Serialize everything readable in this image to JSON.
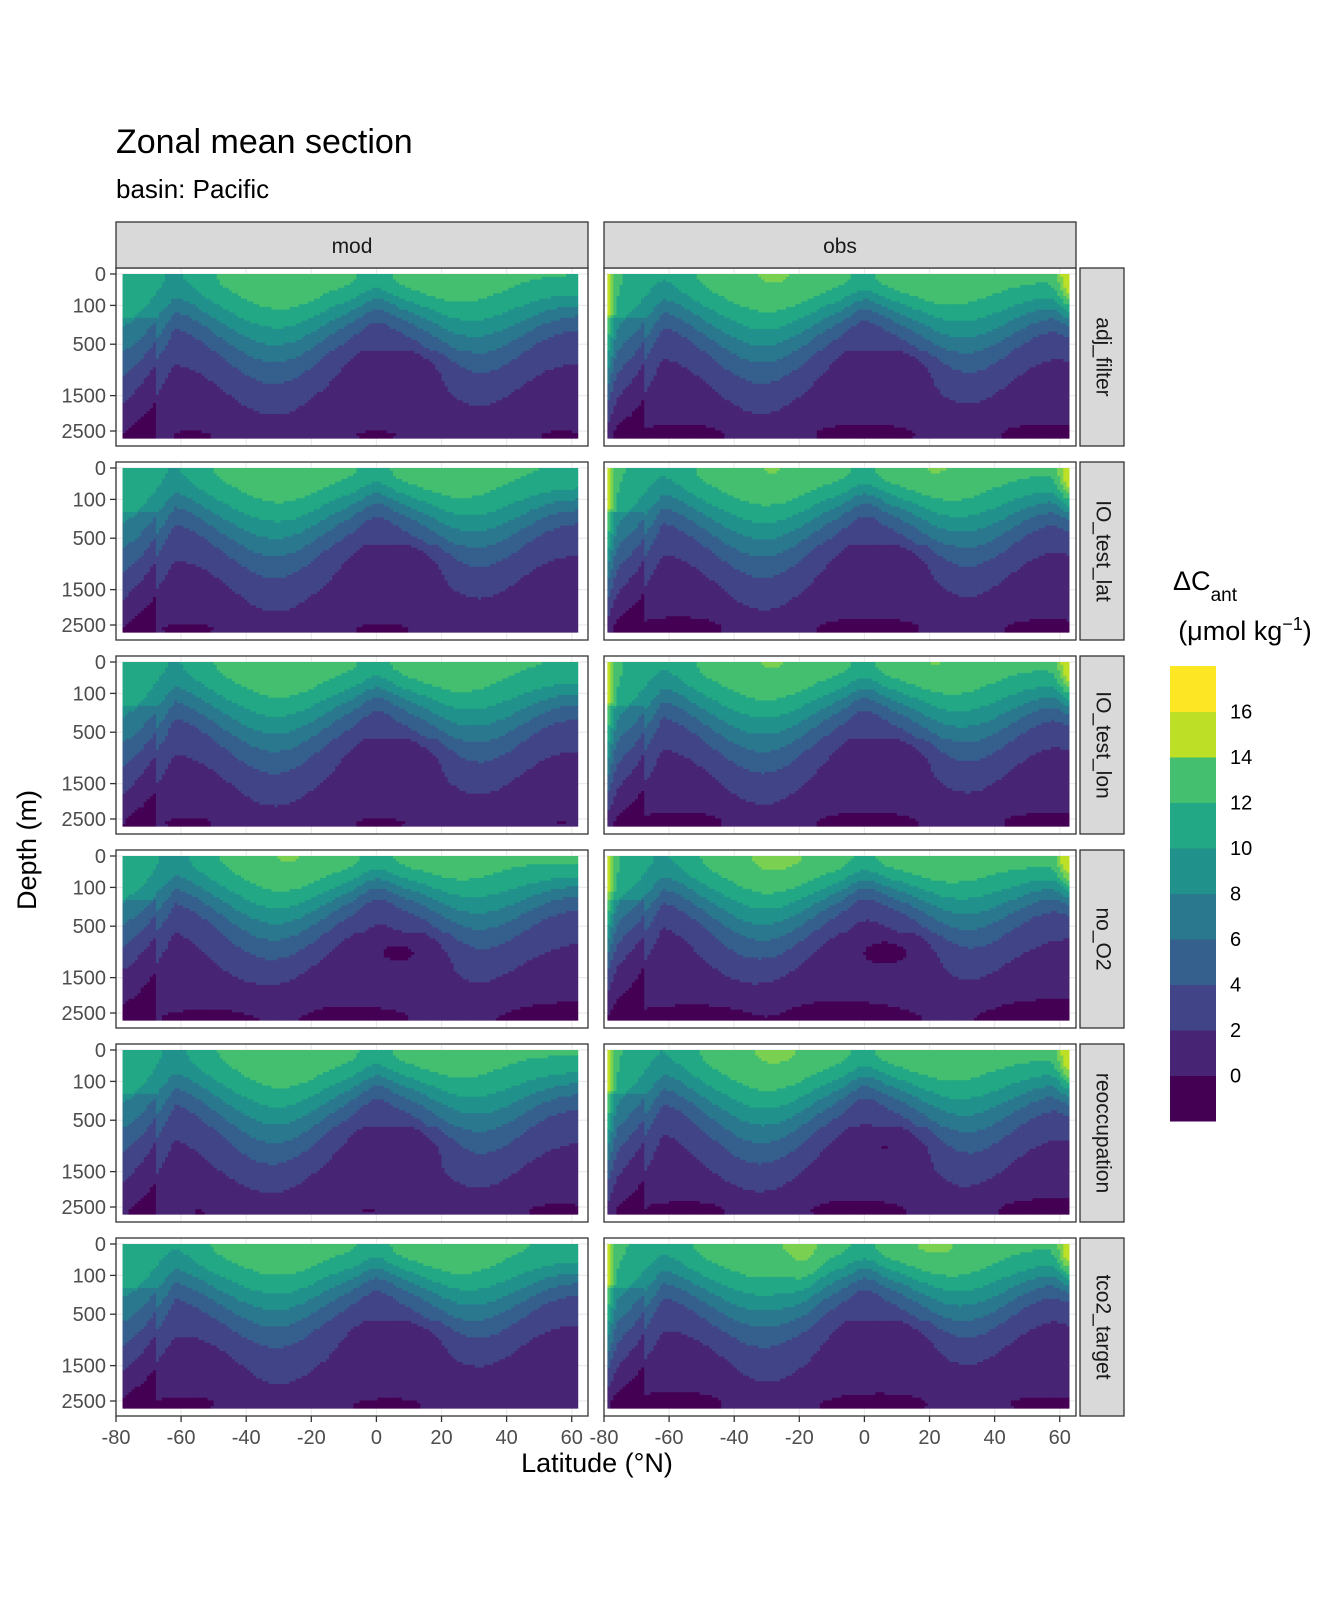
{
  "colors": {
    "levels": [
      "#440154",
      "#482475",
      "#414487",
      "#355f8d",
      "#2a788e",
      "#21918c",
      "#22a884",
      "#44bf70",
      "#7ad151",
      "#bddf26",
      "#fde725"
    ],
    "strip_fill": "#d9d9d9",
    "panel_border": "#333333",
    "grid": "#ebebeb"
  },
  "chart_data": {
    "type": "heatmap",
    "title": "Zonal mean section",
    "subtitle": "basin: Pacific",
    "xlabel": "Latitude (°N)",
    "ylabel": "Depth (m)",
    "columns": [
      "mod",
      "obs"
    ],
    "rows": [
      "adj_filter",
      "IO_test_lat",
      "IO_test_lon",
      "no_O2",
      "reoccupation",
      "tco2_target"
    ],
    "x_ticks": [
      -80,
      -60,
      -40,
      -20,
      0,
      20,
      40,
      60
    ],
    "x_tick_labels": [
      "-80",
      "-60",
      "-40",
      "-20",
      "0",
      "20",
      "40",
      "60"
    ],
    "xlim": [
      -80,
      65
    ],
    "y_ticks": [
      0,
      100,
      500,
      1500,
      2500
    ],
    "y_tick_labels": [
      "0",
      "100",
      "500",
      "1500",
      "2500"
    ],
    "y_scale": "reversed square-root",
    "ylim": [
      3000,
      0
    ],
    "legend": {
      "title_main": "ΔC",
      "title_sub": "ant",
      "unit_pre": "(μmol kg",
      "unit_sup": "−1",
      "unit_post": ")",
      "breaks": [
        -2,
        0,
        2,
        4,
        6,
        8,
        10,
        12,
        14,
        16,
        18
      ],
      "labels": [
        "0",
        "2",
        "4",
        "6",
        "8",
        "10",
        "12",
        "14",
        "16"
      ],
      "placement": "right"
    },
    "grid": true,
    "field_description": "Cant decreases with depth; surface maxima ~10-12 in subtropics, higher (up to 18) at northern high latitudes in obs; deep water mostly <2"
  }
}
